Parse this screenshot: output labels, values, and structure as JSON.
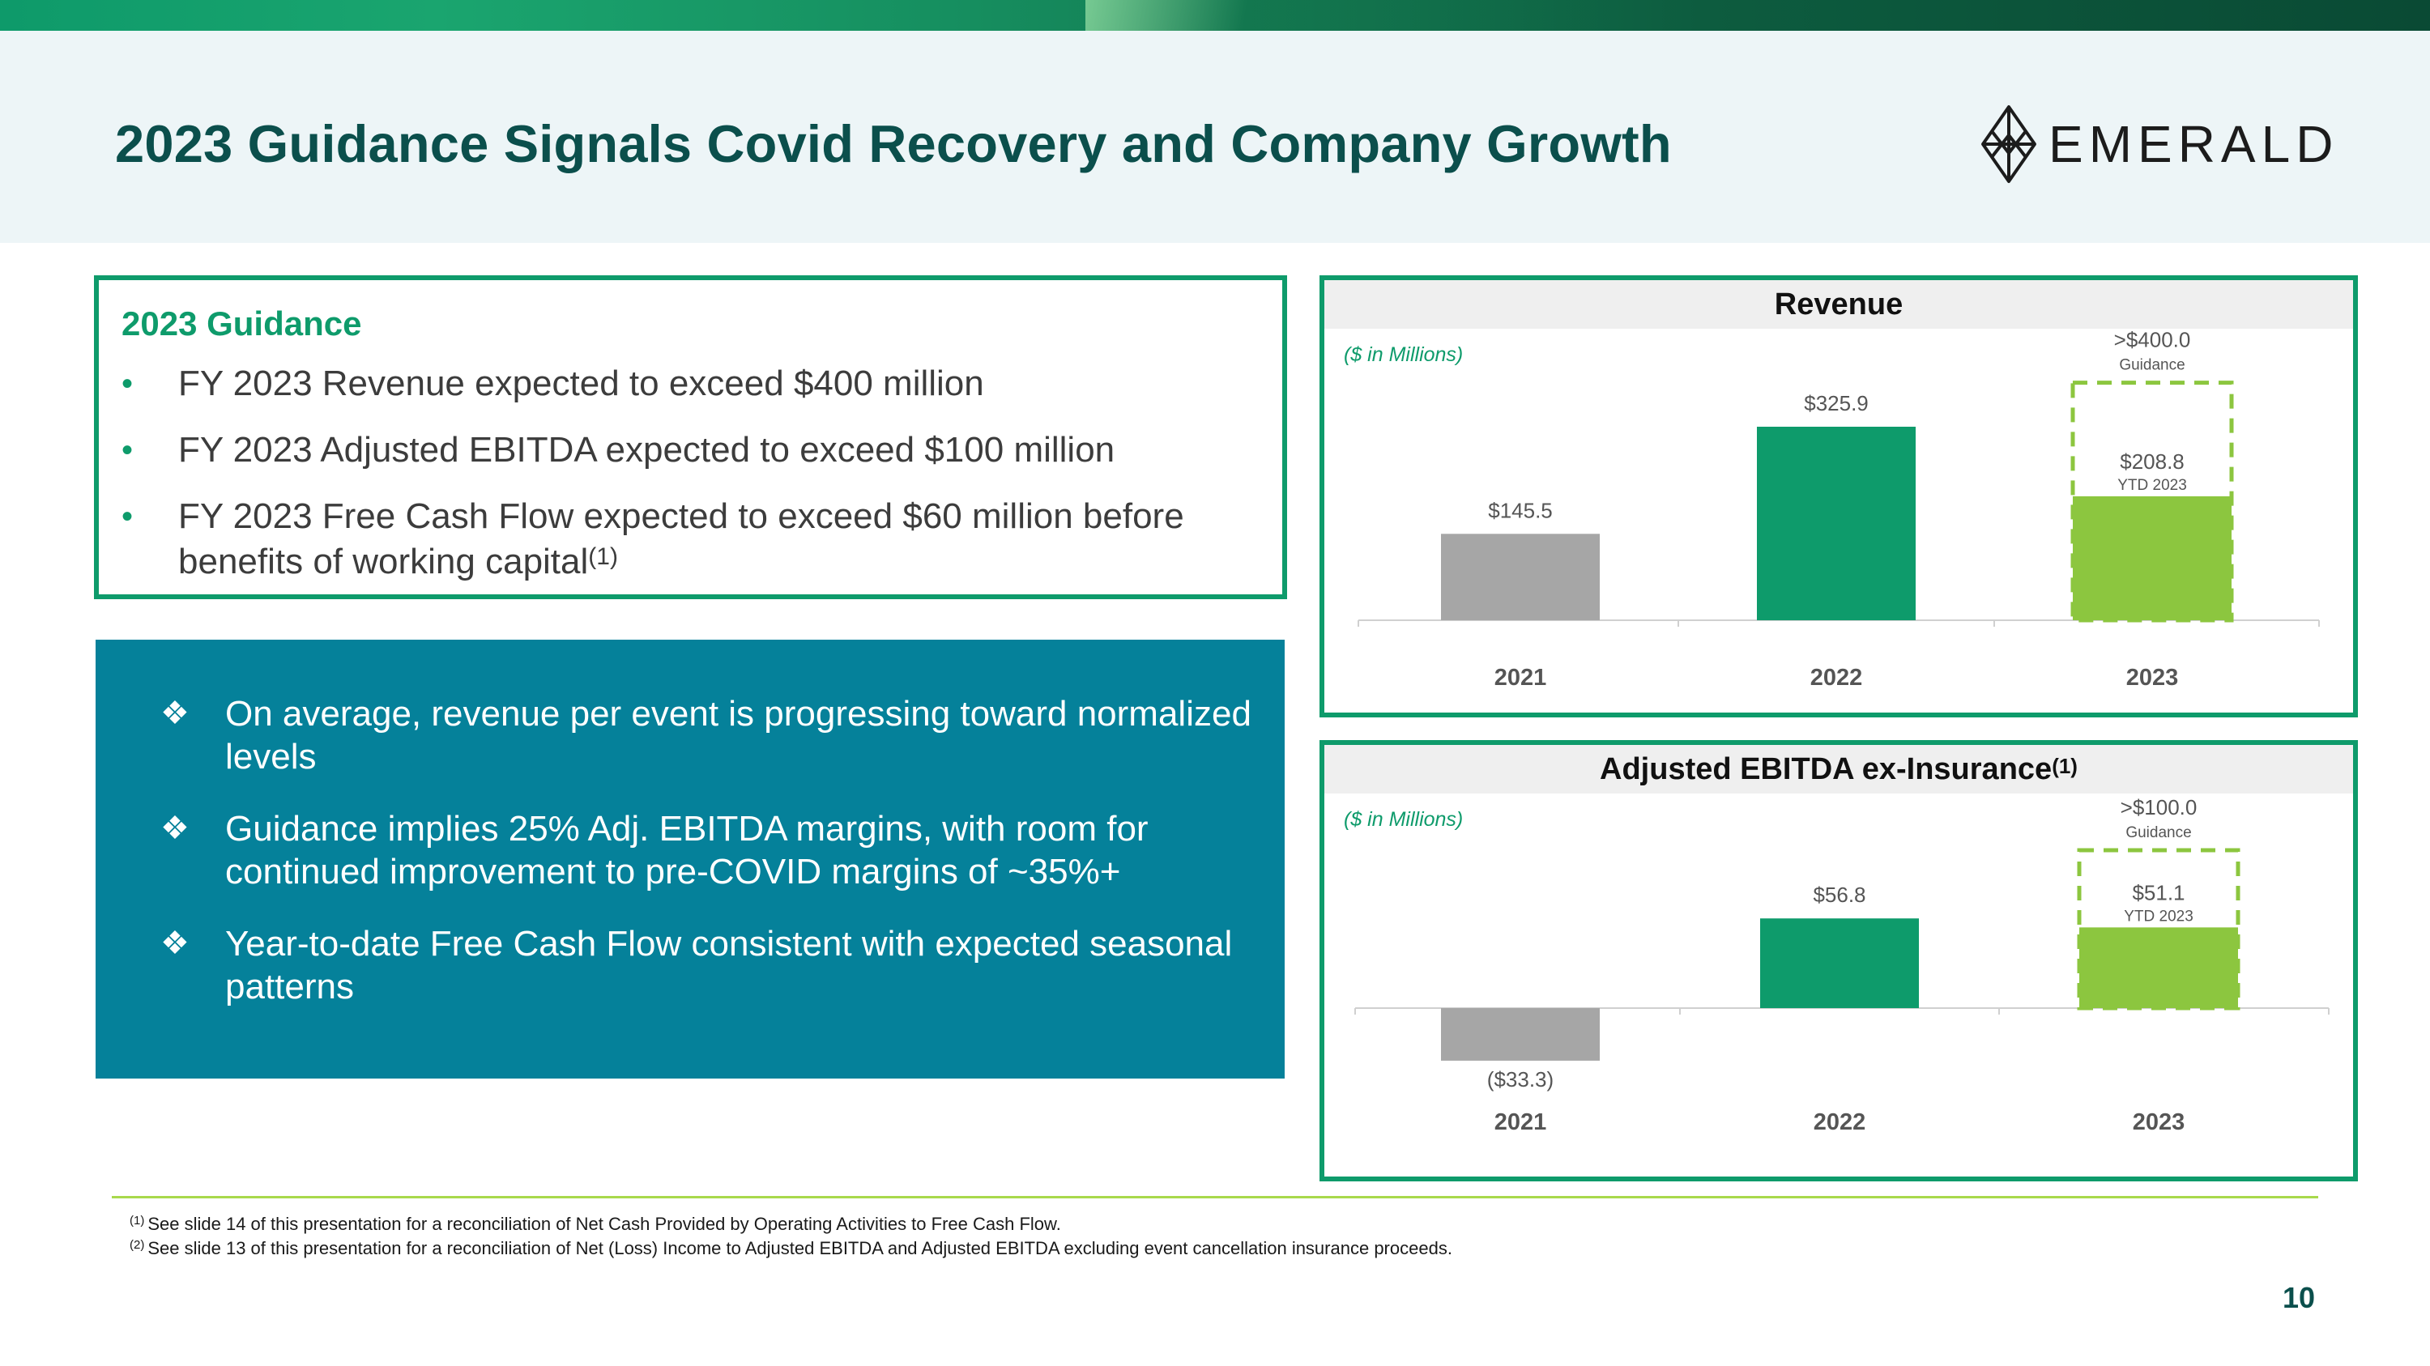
{
  "slide": {
    "title": "2023 Guidance Signals Covid Recovery and Company Growth",
    "logo_text": "EMERALD",
    "page_number": "10"
  },
  "guidance": {
    "heading": "2023 Guidance",
    "bullets": [
      {
        "text": "FY 2023 Revenue expected to exceed $400 million",
        "sup": ""
      },
      {
        "text": "FY 2023 Adjusted EBITDA expected to exceed $100 million",
        "sup": ""
      },
      {
        "text": "FY 2023 Free Cash Flow expected to exceed $60 million before benefits of working capital",
        "sup": "(1)"
      }
    ]
  },
  "highlights": {
    "items": [
      "On average, revenue per event is progressing toward normalized levels",
      "Guidance implies 25% Adj. EBITDA margins, with room for continued improvement to pre-COVID margins of ~35%+",
      "Year-to-date Free Cash Flow consistent with expected seasonal patterns"
    ]
  },
  "footnotes": [
    {
      "mark": "(1)",
      "text": "See slide 14 of this presentation for a reconciliation of Net Cash Provided by Operating Activities to Free Cash Flow."
    },
    {
      "mark": "(2)",
      "text": "See slide 13 of this presentation for a reconciliation of Net (Loss) Income to Adjusted EBITDA and Adjusted EBITDA excluding event cancellation insurance proceeds."
    }
  ],
  "colors": {
    "gray": "#a6a6a6",
    "green": "#0e9b6b",
    "lime": "#8cc63f",
    "title": "#0b4f4c",
    "teal_box": "#05819a"
  },
  "chart_data": [
    {
      "type": "bar",
      "title": "Revenue",
      "title_sup": "",
      "units_label": "($ in Millions)",
      "categories": [
        "2021",
        "2022",
        "2023"
      ],
      "values": [
        145.5,
        325.9,
        208.8
      ],
      "value_labels": [
        "$145.5",
        "$325.9",
        "$208.8"
      ],
      "bar_sublabels": [
        "",
        "",
        "YTD 2023"
      ],
      "guidance": {
        "category": "2023",
        "value": 400.0,
        "label": ">$400.0",
        "sublabel": "Guidance"
      },
      "ylim": [
        0,
        420
      ]
    },
    {
      "type": "bar",
      "title": "Adjusted EBITDA ex-Insurance",
      "title_sup": "(1)",
      "units_label": "($ in Millions)",
      "categories": [
        "2021",
        "2022",
        "2023"
      ],
      "values": [
        -33.3,
        56.8,
        51.1
      ],
      "value_labels": [
        "($33.3)",
        "$56.8",
        "$51.1"
      ],
      "bar_sublabels": [
        "",
        "",
        "YTD 2023"
      ],
      "guidance": {
        "category": "2023",
        "value": 100.0,
        "label": ">$100.0",
        "sublabel": "Guidance"
      },
      "ylim": [
        -40,
        100
      ]
    }
  ]
}
